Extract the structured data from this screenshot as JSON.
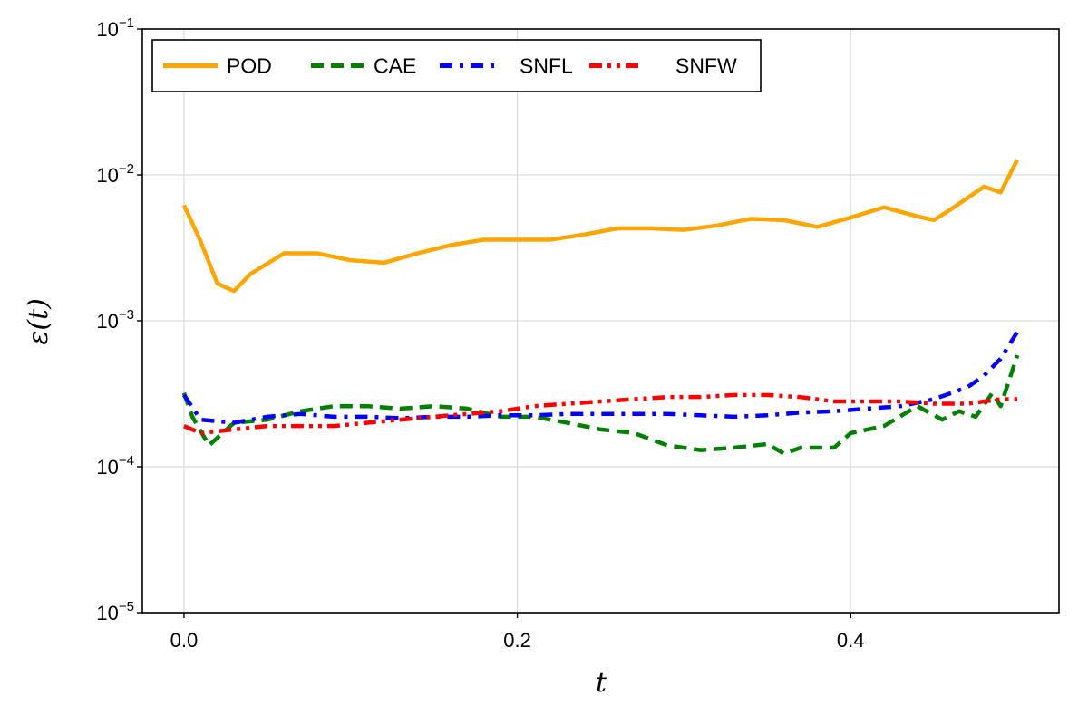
{
  "chart_data": {
    "type": "line",
    "xlabel": "t",
    "ylabel": "ε(t)",
    "xlim": [
      -0.025,
      0.525
    ],
    "ylim": [
      1e-05,
      0.1
    ],
    "yscale": "log",
    "grid": true,
    "legend_position": "top-left",
    "x_ticks": [
      0.0,
      0.2,
      0.4
    ],
    "x_tick_labels": [
      "0.0",
      "0.2",
      "0.4"
    ],
    "y_ticks": [
      {
        "value": 1e-05,
        "base": "10",
        "exp": "−5"
      },
      {
        "value": 0.0001,
        "base": "10",
        "exp": "−4"
      },
      {
        "value": 0.001,
        "base": "10",
        "exp": "−3"
      },
      {
        "value": 0.01,
        "base": "10",
        "exp": "−2"
      },
      {
        "value": 0.1,
        "base": "10",
        "exp": "−1"
      }
    ],
    "series": [
      {
        "name": "POD",
        "color": "#FFA500",
        "style": "solid",
        "x": [
          0.0,
          0.01,
          0.02,
          0.03,
          0.04,
          0.06,
          0.08,
          0.1,
          0.12,
          0.14,
          0.16,
          0.18,
          0.2,
          0.22,
          0.24,
          0.26,
          0.28,
          0.3,
          0.32,
          0.34,
          0.36,
          0.38,
          0.4,
          0.42,
          0.44,
          0.45,
          0.46,
          0.48,
          0.49,
          0.5
        ],
        "y": [
          0.0062,
          0.0035,
          0.0018,
          0.0016,
          0.0021,
          0.0029,
          0.0029,
          0.0026,
          0.0025,
          0.0029,
          0.0033,
          0.0036,
          0.0036,
          0.0036,
          0.0039,
          0.0043,
          0.0043,
          0.0042,
          0.0045,
          0.005,
          0.0049,
          0.0044,
          0.0051,
          0.006,
          0.0052,
          0.0049,
          0.0058,
          0.0083,
          0.0076,
          0.0127
        ]
      },
      {
        "name": "CAE",
        "color": "#008000",
        "style": "dashed",
        "x": [
          0.0,
          0.005,
          0.015,
          0.03,
          0.05,
          0.07,
          0.09,
          0.11,
          0.13,
          0.15,
          0.17,
          0.19,
          0.21,
          0.23,
          0.25,
          0.27,
          0.29,
          0.31,
          0.33,
          0.35,
          0.36,
          0.37,
          0.39,
          0.4,
          0.42,
          0.44,
          0.455,
          0.465,
          0.475,
          0.485,
          0.49,
          0.5
        ],
        "y": [
          0.00032,
          0.00022,
          0.00014,
          0.0002,
          0.00021,
          0.00024,
          0.00026,
          0.00026,
          0.00025,
          0.00026,
          0.00025,
          0.00022,
          0.00022,
          0.0002,
          0.00018,
          0.00017,
          0.00014,
          0.00013,
          0.000135,
          0.000143,
          0.000123,
          0.000135,
          0.000135,
          0.00017,
          0.00019,
          0.00026,
          0.00021,
          0.00024,
          0.00022,
          0.00032,
          0.00026,
          0.00058
        ]
      },
      {
        "name": "SNFL",
        "color": "#0000FF",
        "style": "dashdot",
        "x": [
          0.0,
          0.01,
          0.03,
          0.05,
          0.07,
          0.09,
          0.11,
          0.13,
          0.15,
          0.17,
          0.19,
          0.21,
          0.23,
          0.25,
          0.27,
          0.29,
          0.31,
          0.33,
          0.35,
          0.37,
          0.39,
          0.41,
          0.43,
          0.45,
          0.47,
          0.48,
          0.49,
          0.5
        ],
        "y": [
          0.00031,
          0.00021,
          0.0002,
          0.00022,
          0.00023,
          0.00022,
          0.00022,
          0.000215,
          0.00022,
          0.00022,
          0.000225,
          0.000225,
          0.00023,
          0.00023,
          0.00023,
          0.00023,
          0.000225,
          0.00022,
          0.000225,
          0.000235,
          0.00024,
          0.00025,
          0.00026,
          0.00029,
          0.00035,
          0.00042,
          0.00055,
          0.00084
        ]
      },
      {
        "name": "SNFW",
        "color": "#FF0000",
        "style": "dashdotdot",
        "x": [
          0.0,
          0.01,
          0.03,
          0.05,
          0.07,
          0.09,
          0.11,
          0.13,
          0.15,
          0.17,
          0.19,
          0.21,
          0.23,
          0.25,
          0.27,
          0.29,
          0.31,
          0.33,
          0.35,
          0.37,
          0.39,
          0.41,
          0.43,
          0.45,
          0.47,
          0.49,
          0.5
        ],
        "y": [
          0.00019,
          0.00017,
          0.00018,
          0.00019,
          0.00019,
          0.00019,
          0.0002,
          0.00021,
          0.00022,
          0.00023,
          0.00024,
          0.00026,
          0.00027,
          0.00028,
          0.00029,
          0.0003,
          0.0003,
          0.00031,
          0.00031,
          0.0003,
          0.00028,
          0.00028,
          0.00028,
          0.00027,
          0.00027,
          0.00029,
          0.00029
        ]
      }
    ]
  }
}
